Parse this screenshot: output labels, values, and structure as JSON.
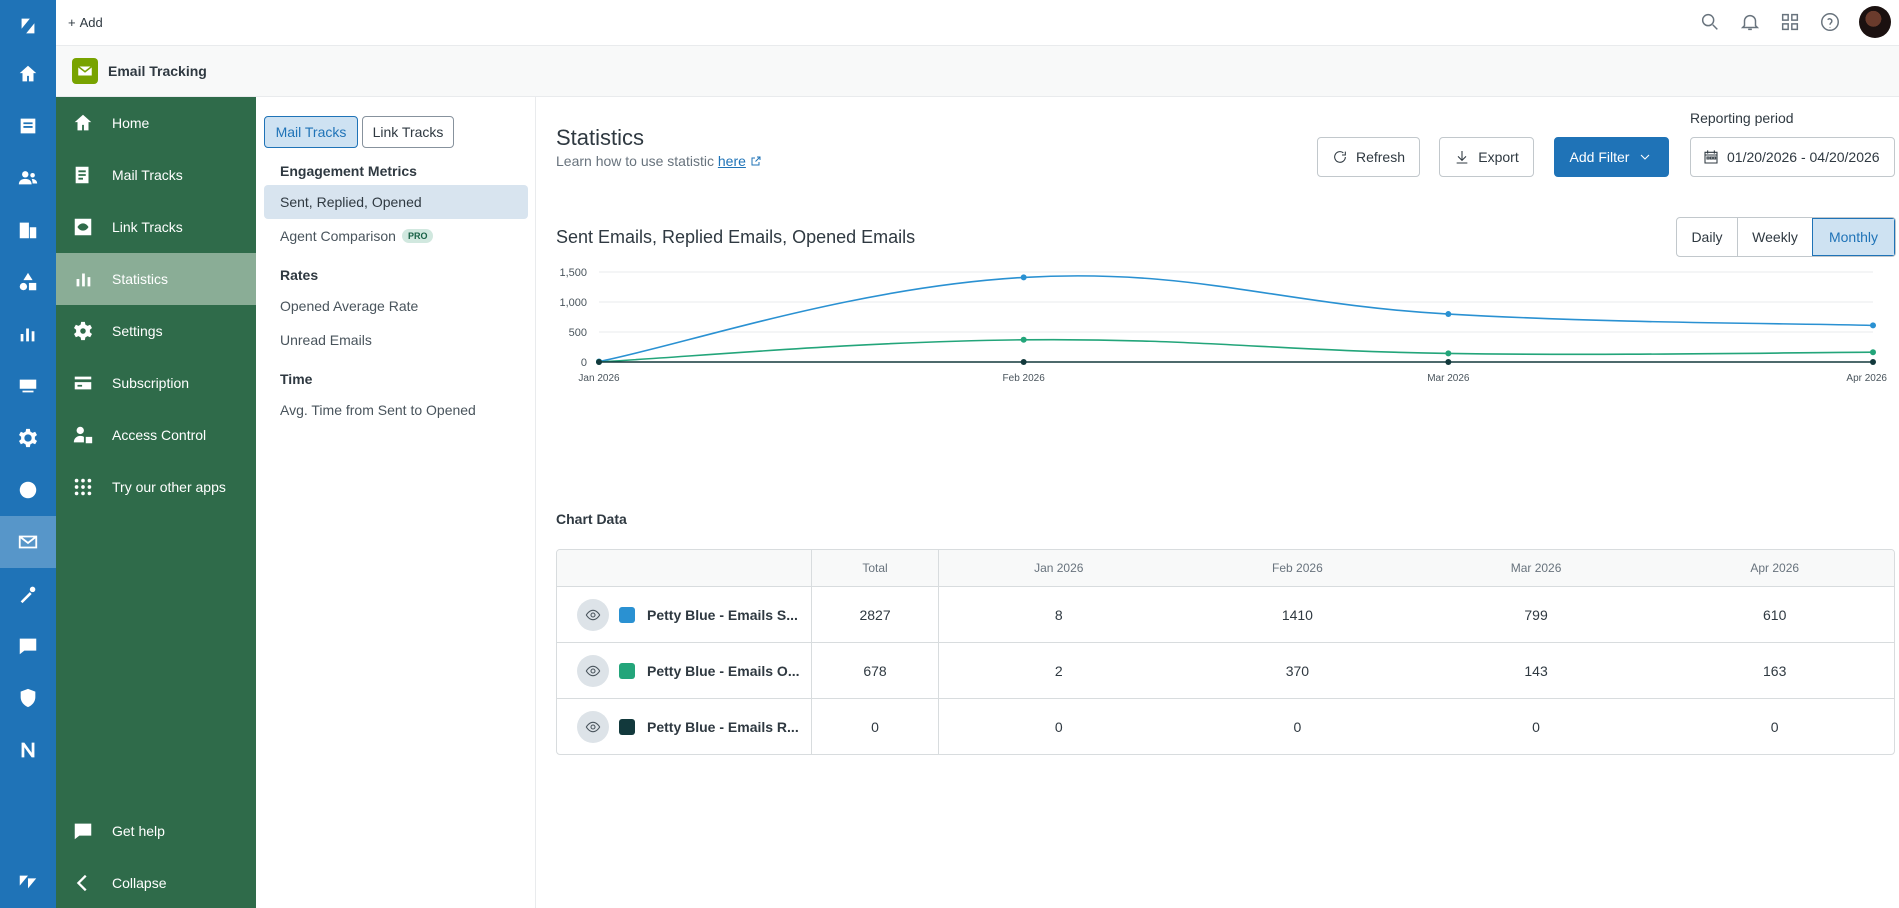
{
  "topbar": {
    "add_label": "Add"
  },
  "app": {
    "title": "Email Tracking"
  },
  "sidebar": {
    "items": [
      {
        "label": "Home",
        "icon": "home-icon"
      },
      {
        "label": "Mail Tracks",
        "icon": "mail-tracks-icon"
      },
      {
        "label": "Link Tracks",
        "icon": "link-tracks-icon"
      },
      {
        "label": "Statistics",
        "icon": "bar-chart-icon"
      },
      {
        "label": "Settings",
        "icon": "gear-icon"
      },
      {
        "label": "Subscription",
        "icon": "credit-card-icon"
      },
      {
        "label": "Access Control",
        "icon": "user-lock-icon"
      },
      {
        "label": "Try our other apps",
        "icon": "grid-dots-icon"
      }
    ],
    "help_label": "Get help",
    "collapse_label": "Collapse"
  },
  "subnav": {
    "tabs": [
      "Mail Tracks",
      "Link Tracks"
    ],
    "sections": [
      {
        "title": "Engagement Metrics",
        "items": [
          "Sent, Replied, Opened",
          "Agent Comparison"
        ]
      },
      {
        "title": "Rates",
        "items": [
          "Opened Average Rate",
          "Unread Emails"
        ]
      },
      {
        "title": "Time",
        "items": [
          "Avg. Time from Sent to Opened"
        ]
      }
    ],
    "pro_badge": "PRO"
  },
  "main": {
    "title": "Statistics",
    "subtitle": "Learn how to use statistic",
    "subtitle_link": "here",
    "refresh_label": "Refresh",
    "export_label": "Export",
    "add_filter_label": "Add Filter",
    "reporting_label": "Reporting period",
    "date_range": "01/20/2026 - 04/20/2026",
    "chart_title": "Sent Emails, Replied Emails, Opened Emails",
    "granularity": [
      "Daily",
      "Weekly",
      "Monthly"
    ],
    "chart_data_title": "Chart Data"
  },
  "chart_data": {
    "type": "line",
    "title": "Sent Emails, Replied Emails, Opened Emails",
    "categories": [
      "Jan 2026",
      "Feb 2026",
      "Mar 2026",
      "Apr 2026"
    ],
    "yticks": [
      "0",
      "500",
      "1,000",
      "1,500"
    ],
    "ylim": [
      0,
      1500
    ],
    "grid": true,
    "series": [
      {
        "name": "Petty Blue - Emails S...",
        "color": "#2a91d2",
        "values": [
          8,
          1410,
          799,
          610
        ]
      },
      {
        "name": "Petty Blue - Emails O...",
        "color": "#23a57a",
        "values": [
          2,
          370,
          143,
          163
        ]
      },
      {
        "name": "Petty Blue - Emails R...",
        "color": "#12393c",
        "values": [
          0,
          0,
          0,
          0
        ]
      }
    ]
  },
  "table": {
    "headers": [
      "",
      "Total",
      "Jan 2026",
      "Feb 2026",
      "Mar 2026",
      "Apr 2026"
    ],
    "rows": [
      {
        "name": "Petty Blue - Emails S...",
        "color": "#2a91d2",
        "total": "2827",
        "values": [
          "8",
          "1410",
          "799",
          "610"
        ]
      },
      {
        "name": "Petty Blue - Emails O...",
        "color": "#23a57a",
        "total": "678",
        "values": [
          "2",
          "370",
          "143",
          "163"
        ]
      },
      {
        "name": "Petty Blue - Emails R...",
        "color": "#12393c",
        "total": "0",
        "values": [
          "0",
          "0",
          "0",
          "0"
        ]
      }
    ]
  }
}
